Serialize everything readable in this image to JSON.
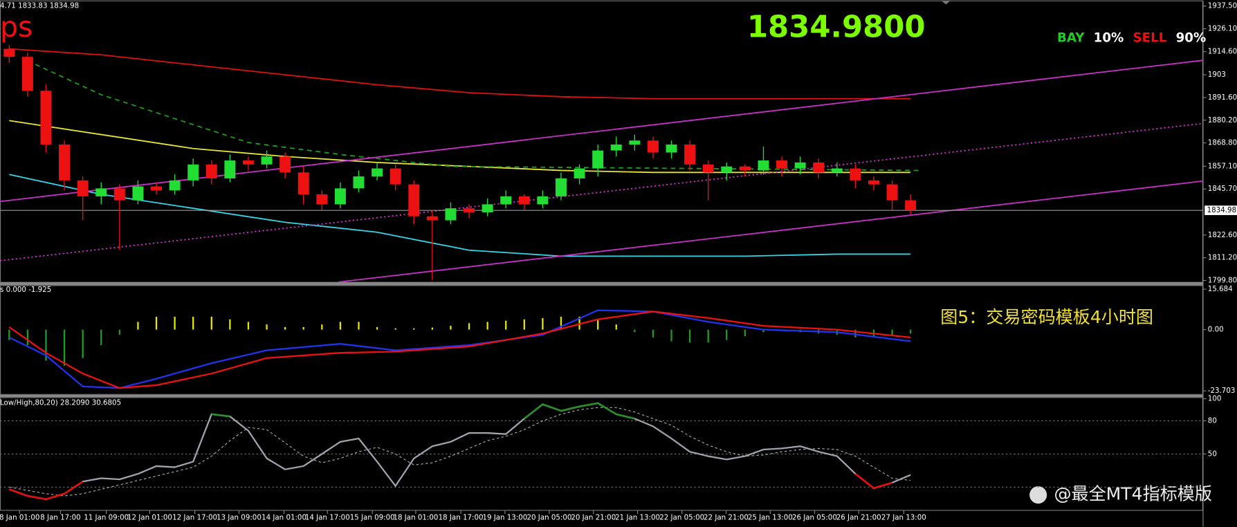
{
  "chart_data": [
    {
      "type": "candlestick",
      "header": "4.71 1833.83 1834.98",
      "label": "ps",
      "price_display": "1834.9800",
      "signal_text": [
        {
          "text": "BAY",
          "color": "#22cc22"
        },
        {
          "text": "10%",
          "color": "#ffffff"
        },
        {
          "text": "SELL",
          "color": "#ee1111"
        },
        {
          "text": "90%",
          "color": "#ffffff"
        }
      ],
      "xlim": [
        -0.5,
        64.9
      ],
      "ylim": [
        1799.8,
        1937.5
      ],
      "yticks": [
        {
          "value": 1937.5,
          "label": "1937.50"
        },
        {
          "value": 1926.1,
          "label": "1926.10"
        },
        {
          "value": 1914.6,
          "label": "1914.60"
        },
        1903.0,
        {
          "value": 1891.6,
          "label": "1891.60"
        },
        {
          "value": 1880.2,
          "label": "1880.20"
        },
        {
          "value": 1868.8,
          "label": "1868.80"
        },
        {
          "value": 1857.1,
          "label": "1857.10"
        },
        {
          "value": 1845.7,
          "label": "1845.70"
        },
        {
          "value": 1822.6,
          "label": "1822.60"
        },
        {
          "value": 1811.2,
          "label": "1811.20"
        },
        {
          "value": 1799.8,
          "label": "1799.80"
        }
      ],
      "current_price": {
        "value": 1834.98,
        "label": "1834.98"
      },
      "xticks": [
        {
          "value": 0.56,
          "label": "8 Jan 01:00"
        },
        {
          "value": 2.79,
          "label": "8 Jan 17:00"
        },
        {
          "value": 5.28,
          "label": "11 Jan 09:00"
        },
        {
          "value": 7.64,
          "label": "12 Jan 01:00"
        },
        {
          "value": 10.09,
          "label": "12 Jan 17:00"
        },
        {
          "value": 12.49,
          "label": "13 Jan 09:00"
        },
        {
          "value": 14.94,
          "label": "14 Jan 01:00"
        },
        {
          "value": 17.3,
          "label": "14 Jan 17:00"
        },
        {
          "value": 19.74,
          "label": "15 Jan 09:00"
        },
        {
          "value": 22.1,
          "label": "18 Jan 01:00"
        },
        {
          "value": 24.55,
          "label": "18 Jan 17:00"
        },
        {
          "value": 26.95,
          "label": "19 Jan 13:00"
        },
        {
          "value": 29.36,
          "label": "20 Jan 05:00"
        },
        {
          "value": 31.76,
          "label": "20 Jan 21:00"
        },
        {
          "value": 34.16,
          "label": "21 Jan 13:00"
        },
        {
          "value": 36.57,
          "label": "22 Jan 05:00"
        },
        {
          "value": 38.97,
          "label": "22 Jan 21:00"
        },
        {
          "value": 41.37,
          "label": "25 Jan 13:00"
        },
        {
          "value": 43.78,
          "label": "26 Jan 05:00"
        },
        {
          "value": 46.18,
          "label": "26 Jan 21:00"
        },
        {
          "value": 48.63,
          "label": "27 Jan 13:00"
        }
      ],
      "up_color": "#22dd33",
      "down_color": "#ee1111",
      "open": [
        1916,
        1912,
        1895,
        1868,
        1850,
        1842,
        1846,
        1840,
        1847,
        1845,
        1850,
        1858,
        1851,
        1860,
        1858,
        1862,
        1854,
        1843,
        1838,
        1846,
        1852,
        1856,
        1848,
        1832,
        1830,
        1836,
        1834,
        1838,
        1842,
        1838,
        1842,
        1851,
        1856,
        1865,
        1868,
        1870,
        1864,
        1868,
        1858,
        1854,
        1857,
        1855,
        1860,
        1856,
        1859,
        1854,
        1856,
        1850,
        1848,
        1840
      ],
      "high": [
        1918,
        1914,
        1898,
        1870,
        1852,
        1849,
        1848,
        1850,
        1849,
        1853,
        1861,
        1860,
        1863,
        1862,
        1865,
        1864,
        1857,
        1845,
        1849,
        1855,
        1859,
        1858,
        1850,
        1835,
        1839,
        1838,
        1841,
        1845,
        1843,
        1845,
        1854,
        1858,
        1868,
        1872,
        1873,
        1872,
        1870,
        1870,
        1860,
        1859,
        1858,
        1867,
        1862,
        1862,
        1861,
        1859,
        1858,
        1852,
        1850,
        1843
      ],
      "low": [
        1909,
        1892,
        1864,
        1845,
        1830,
        1838,
        1815,
        1838,
        1843,
        1843,
        1847,
        1848,
        1849,
        1855,
        1856,
        1851,
        1838,
        1835,
        1836,
        1844,
        1850,
        1845,
        1828,
        1800,
        1828,
        1831,
        1832,
        1836,
        1835,
        1836,
        1840,
        1848,
        1852,
        1862,
        1865,
        1861,
        1861,
        1855,
        1840,
        1850,
        1852,
        1853,
        1852,
        1853,
        1851,
        1852,
        1846,
        1845,
        1835,
        1833
      ],
      "close": [
        1912,
        1895,
        1868,
        1850,
        1842,
        1846,
        1840,
        1847,
        1845,
        1850,
        1858,
        1851,
        1860,
        1858,
        1862,
        1854,
        1843,
        1838,
        1846,
        1852,
        1856,
        1848,
        1832,
        1830,
        1836,
        1834,
        1838,
        1842,
        1838,
        1842,
        1851,
        1856,
        1865,
        1868,
        1870,
        1864,
        1868,
        1858,
        1854,
        1857,
        1855,
        1860,
        1856,
        1859,
        1854,
        1856,
        1850,
        1848,
        1840,
        1835
      ],
      "overlays": [
        {
          "color": "#e01010",
          "style": "solid",
          "x": [
            0,
            5,
            10,
            15,
            20,
            25,
            30,
            35,
            40,
            45,
            49
          ],
          "values": [
            1916,
            1913,
            1908,
            1903,
            1898,
            1894,
            1892,
            1891,
            1891,
            1891,
            1891
          ]
        },
        {
          "color": "#e6e632",
          "style": "solid",
          "x": [
            0,
            5,
            10,
            15,
            20,
            25,
            30,
            35,
            40,
            45,
            49
          ],
          "values": [
            1880,
            1873,
            1866,
            1862,
            1859,
            1857,
            1855,
            1854,
            1854,
            1854,
            1854
          ]
        },
        {
          "color": "#33d6e6",
          "style": "solid",
          "x": [
            0,
            5,
            10,
            15,
            20,
            25,
            30,
            35,
            40,
            45,
            49
          ],
          "values": [
            1853,
            1843,
            1836,
            1829,
            1824,
            1815,
            1812,
            1812,
            1812,
            1813,
            1813
          ]
        },
        {
          "color": "#1e9e1e",
          "style": "dashed",
          "x": [
            1,
            5,
            13,
            18,
            24,
            49.5
          ],
          "values": [
            1910,
            1893,
            1869,
            1863,
            1857,
            1855
          ]
        },
        {
          "color": "#c830c8",
          "style": "solid",
          "x": [
            -0.5,
            65.2
          ],
          "values": [
            1839.4,
            1910.6
          ]
        },
        {
          "color": "#c830c8",
          "style": "dotted",
          "x": [
            -0.5,
            65.2
          ],
          "values": [
            1809.7,
            1878.9
          ]
        },
        {
          "color": "#c830c8",
          "style": "solid",
          "x": [
            17.9,
            65.2
          ],
          "values": [
            1799,
            1850
          ]
        }
      ]
    },
    {
      "type": "macd",
      "header": "s 0.000 -1.925",
      "xlim": [
        -0.5,
        64.9
      ],
      "ylim": [
        -23.703,
        15.684
      ],
      "yticks": [
        15.684,
        {
          "value": 0,
          "label": "0.00"
        },
        -23.703
      ],
      "up_color": "#e6e600",
      "down_color": "#1e9e1e",
      "values": [
        -4,
        -6,
        -12,
        -14,
        -11,
        -6,
        -2,
        3,
        5,
        5,
        5,
        5,
        4,
        3,
        2,
        1,
        1,
        2,
        3,
        3,
        1,
        0.5,
        0.5,
        0.8,
        1.5,
        2.5,
        3,
        3.5,
        4,
        4.5,
        5,
        5,
        4,
        2,
        -1,
        -3,
        -4.5,
        -5,
        -5,
        -4,
        -2.5,
        -1,
        -0.5,
        -1,
        -1.5,
        -2,
        -3,
        -3,
        -2.5,
        -1.5
      ],
      "lines": [
        {
          "color": "#2233ee",
          "x": [
            0,
            2,
            4,
            6,
            8,
            11,
            14,
            18,
            21,
            25,
            29,
            32,
            35,
            38,
            41,
            45,
            49
          ],
          "values": [
            -3,
            -10,
            -22,
            -22.6,
            -19,
            -13,
            -8,
            -5.5,
            -8,
            -6,
            -2,
            7.5,
            7,
            3,
            0,
            -1,
            -4.5
          ]
        },
        {
          "color": "#ee1111",
          "x": [
            0,
            2,
            4,
            6,
            8,
            11,
            14,
            18,
            21,
            25,
            29,
            32,
            35,
            38,
            41,
            45,
            49
          ],
          "values": [
            1,
            -9,
            -17,
            -22.6,
            -21.5,
            -17,
            -11,
            -9,
            -8.5,
            -6.5,
            -1.5,
            4,
            7,
            4.5,
            1.5,
            0,
            -3
          ]
        }
      ]
    },
    {
      "type": "stochastic",
      "header": "Low/High,80,20) 28.2090 30.6805",
      "xlim": [
        -0.5,
        64.9
      ],
      "ylim": [
        0,
        100
      ],
      "yticks": [
        100,
        80,
        50
      ],
      "levels": [
        80,
        50,
        20
      ],
      "color": "#9ea3ad",
      "up_color": "#2e8b2e",
      "down_color": "#e01010",
      "signal_color": "#aaaaaa",
      "values": [
        18,
        12,
        9,
        14,
        25,
        28,
        27,
        32,
        39,
        38,
        43,
        86,
        84,
        71,
        46,
        36,
        39,
        50,
        61,
        64,
        43,
        21,
        46,
        57,
        61,
        69,
        69,
        68,
        82,
        95,
        89,
        93,
        96,
        86,
        82,
        75,
        64,
        52,
        48,
        45,
        48,
        54,
        55,
        57,
        52,
        48,
        32,
        19,
        24,
        31
      ],
      "signal": [
        20,
        17,
        14,
        12,
        14,
        18,
        22,
        26,
        30,
        34,
        38,
        48,
        62,
        74,
        72,
        60,
        48,
        42,
        46,
        52,
        56,
        50,
        40,
        42,
        48,
        55,
        62,
        66,
        72,
        80,
        86,
        90,
        92,
        92,
        88,
        82,
        76,
        66,
        58,
        52,
        48,
        49,
        52,
        54,
        55,
        54,
        48,
        38,
        28,
        26
      ]
    }
  ],
  "caption": "图5：交易密码模板4小时图",
  "watermark": "@最全MT4指标模版"
}
